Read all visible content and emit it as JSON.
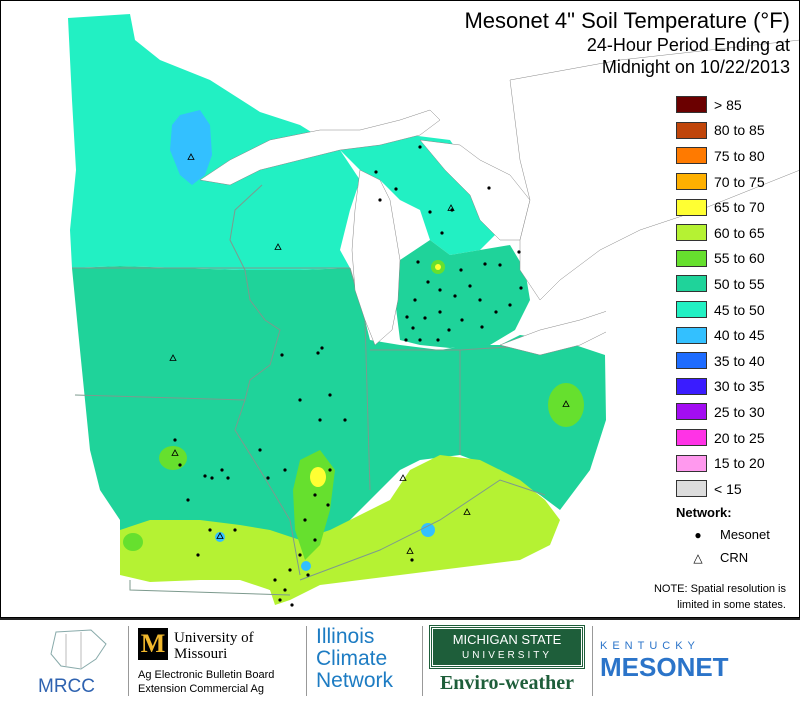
{
  "title": {
    "line1": "Mesonet 4\" Soil Temperature (°F)",
    "line2": "24-Hour Period Ending at",
    "line3": "Midnight on 10/22/2013"
  },
  "legend": [
    {
      "label": "> 85",
      "color": "#6b0000"
    },
    {
      "label": "80 to 85",
      "color": "#c0450a"
    },
    {
      "label": "75 to 80",
      "color": "#ff7a00"
    },
    {
      "label": "70 to 75",
      "color": "#ffb000"
    },
    {
      "label": "65 to 70",
      "color": "#ffff33"
    },
    {
      "label": "60 to 65",
      "color": "#b5f233"
    },
    {
      "label": "55 to 60",
      "color": "#66e02e"
    },
    {
      "label": "50 to 55",
      "color": "#1fd39a"
    },
    {
      "label": "45 to 50",
      "color": "#22f0c3"
    },
    {
      "label": "40 to 45",
      "color": "#33c0ff"
    },
    {
      "label": "35 to 40",
      "color": "#1e6cff"
    },
    {
      "label": "30 to 35",
      "color": "#3a1cff"
    },
    {
      "label": "25 to 30",
      "color": "#a30df2"
    },
    {
      "label": "20 to 25",
      "color": "#ff33e6"
    },
    {
      "label": "15 to 20",
      "color": "#ff99ee"
    },
    {
      "label": "< 15",
      "color": "#dddddd"
    }
  ],
  "network": {
    "title": "Network:",
    "mesonet_label": "Mesonet",
    "crn_label": "CRN"
  },
  "note": {
    "line1": "NOTE: Spatial resolution is",
    "line2": "limited in some states."
  },
  "logos": {
    "mrcc": "MRCC",
    "mu_letter": "M",
    "mu_line1": "University of",
    "mu_line2": "Missouri",
    "mu_line3": "Ag Electronic Bulletin Board",
    "mu_line4": "Extension Commercial Ag",
    "il_line1": "Illinois",
    "il_line2": "Climate",
    "il_line3": "Network",
    "msu_line1": "MICHIGAN STATE",
    "msu_line2": "UNIVERSITY",
    "msu_line3": "Enviro-weather",
    "ky_line1": "KENTUCKY",
    "ky_line2": "MESONET"
  }
}
